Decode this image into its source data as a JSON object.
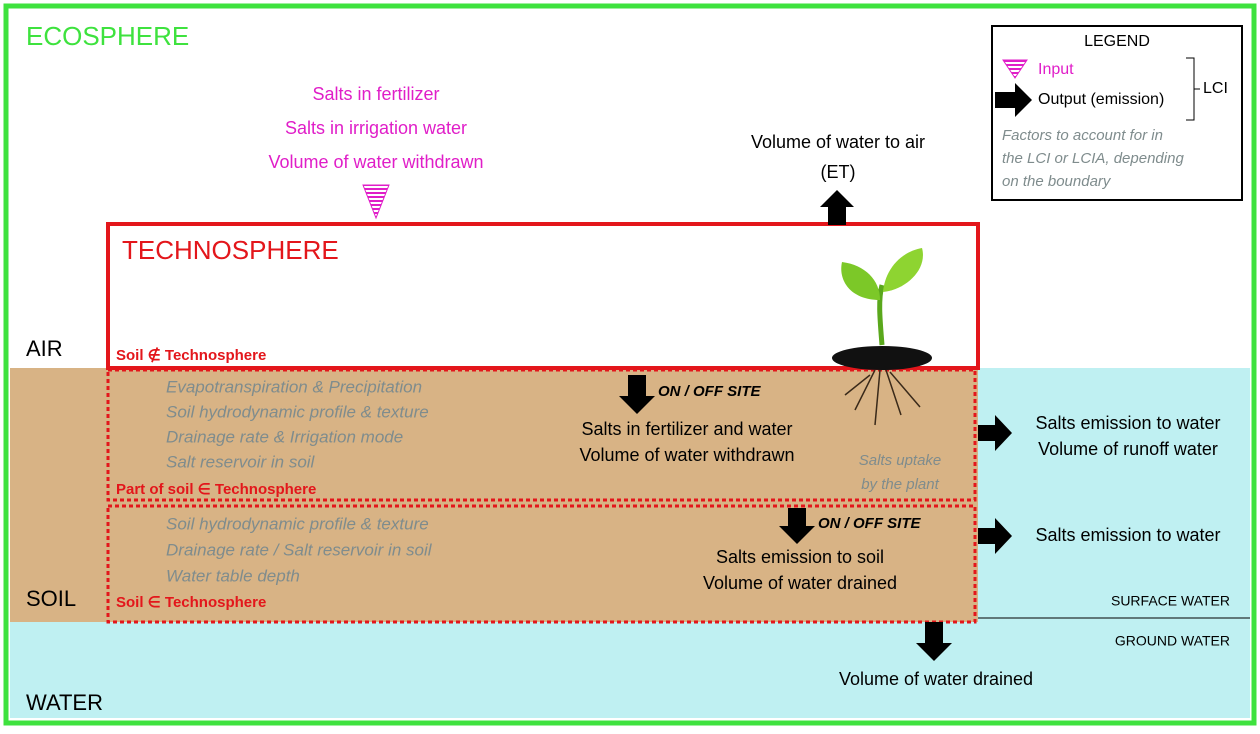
{
  "ecosphere": "ECOSPHERE",
  "technosphere": "TECHNOSPHERE",
  "layers": {
    "air": "AIR",
    "soil": "SOIL",
    "water": "WATER"
  },
  "inputs": [
    "Salts in fertilizer",
    "Salts in irrigation water",
    "Volume of water withdrawn"
  ],
  "air_output": [
    "Volume of water to air",
    "(ET)"
  ],
  "legend": {
    "title": "LEGEND",
    "input": "Input",
    "output": "Output (emission)",
    "lci": "LCI",
    "note": [
      "Factors to account for in",
      "the LCI or LCIA, depending",
      "on the boundary"
    ]
  },
  "zone_air": {
    "label": "Soil ∉ Technosphere"
  },
  "zone_upper": {
    "label": "Part of soil ∈ Technosphere",
    "factors": [
      "Evapotranspiration & Precipitation",
      "Soil hydrodynamic profile & texture",
      "Drainage rate & Irrigation mode",
      "Salt reservoir in soil"
    ],
    "site": "ON / OFF SITE",
    "flows": [
      "Salts in fertilizer and water",
      "Volume of water withdrawn"
    ],
    "uptake": [
      "Salts uptake",
      "by the plant"
    ],
    "outputs": [
      "Salts emission to water",
      "Volume of runoff water"
    ]
  },
  "zone_lower": {
    "label": "Soil ∈ Technosphere",
    "factors": [
      "Soil hydrodynamic profile & texture",
      "Drainage rate / Salt reservoir in soil",
      "Water table depth"
    ],
    "site": "ON / OFF SITE",
    "flows": [
      "Salts emission to soil",
      "Volume of water drained"
    ],
    "outputs": [
      "Salts emission to water"
    ]
  },
  "surface_water": "SURFACE WATER",
  "ground_water": "GROUND WATER",
  "ground_output": "Volume of water drained"
}
